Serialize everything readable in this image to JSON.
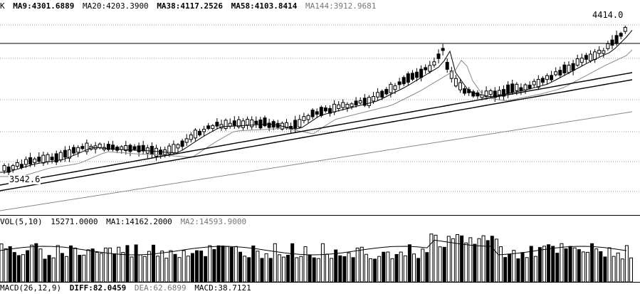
{
  "kline": {
    "indicator_prefix": "K",
    "ma_labels": [
      "MA9:4301.6889",
      "MA20:4203.3900",
      "MA38:4117.2526",
      "MA58:4103.8414",
      "MA144:3912.9681"
    ],
    "high_label": "4414.0",
    "low_label": "3542.6"
  },
  "volume": {
    "labels": [
      "VOL(5,10)",
      "15271.0000",
      "MA1:14162.2000",
      "MA2:14593.9000"
    ]
  },
  "macd": {
    "labels": [
      "MACD(26,12,9)",
      "DIFF:82.0459",
      "DEA:62.6899",
      "MACD:38.7121"
    ]
  },
  "colors": {
    "ink": "#000000",
    "grid": "#9a9a9a",
    "dim_line": "#8a8a8a"
  }
}
